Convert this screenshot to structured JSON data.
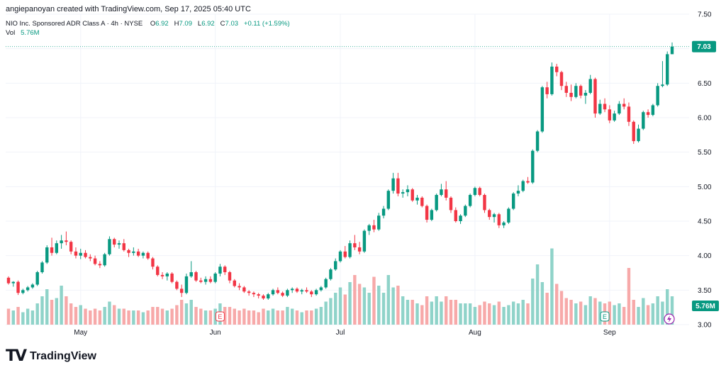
{
  "header": {
    "attribution": "angiepanoyan created with TradingView.com, Sep 17, 2025 05:40 UTC"
  },
  "legend": {
    "symbol": "NIO Inc. Sponsored ADR Class A · 4h · NYSE",
    "open_label": "O",
    "open": "6.92",
    "high_label": "H",
    "high": "7.09",
    "low_label": "L",
    "low": "6.92",
    "close_label": "C",
    "close": "7.03",
    "change": "+0.11 (+1.59%)",
    "vol_label": "Vol",
    "vol_value": "5.76M"
  },
  "brand": {
    "name": "TradingView"
  },
  "colors": {
    "up": "#089981",
    "down": "#f23645",
    "vol_up": "#8fd3c9",
    "vol_down": "#f7a9a9",
    "grid": "#f0f3fa",
    "badge": "#089981"
  },
  "chart_data": {
    "type": "candlestick",
    "title": "NIO Inc. Sponsored ADR Class A · 4h · NYSE",
    "ylim": [
      3.0,
      7.5
    ],
    "y_ticks": [
      "7.50",
      "7.00",
      "6.50",
      "6.00",
      "5.50",
      "5.00",
      "4.50",
      "4.00",
      "3.50",
      "3.00"
    ],
    "x_labels": [
      {
        "label": "May",
        "index": 15
      },
      {
        "label": "Jun",
        "index": 43
      },
      {
        "label": "Jul",
        "index": 69
      },
      {
        "label": "Aug",
        "index": 97
      },
      {
        "label": "Sep",
        "index": 125
      }
    ],
    "last_price": "7.03",
    "last_volume": "5.76M",
    "earnings_markers": [
      {
        "label": "E",
        "index": 44
      },
      {
        "label": "E",
        "index": 124
      }
    ],
    "candles": [
      [
        3.68,
        3.7,
        3.58,
        3.6,
        0.9
      ],
      [
        3.6,
        3.63,
        3.55,
        3.62,
        0.8
      ],
      [
        3.62,
        3.64,
        3.43,
        3.46,
        1.0
      ],
      [
        3.46,
        3.52,
        3.44,
        3.5,
        0.7
      ],
      [
        3.5,
        3.56,
        3.48,
        3.54,
        0.9
      ],
      [
        3.54,
        3.6,
        3.52,
        3.58,
        0.8
      ],
      [
        3.58,
        3.78,
        3.56,
        3.76,
        1.2
      ],
      [
        3.76,
        3.92,
        3.74,
        3.9,
        1.6
      ],
      [
        3.9,
        4.15,
        3.88,
        4.12,
        2.0
      ],
      [
        4.12,
        4.26,
        4.0,
        4.04,
        1.4
      ],
      [
        4.04,
        4.22,
        4.02,
        4.18,
        1.5
      ],
      [
        4.18,
        4.3,
        4.1,
        4.22,
        2.2
      ],
      [
        4.22,
        4.35,
        4.15,
        4.2,
        1.6
      ],
      [
        4.2,
        4.22,
        4.02,
        4.06,
        1.2
      ],
      [
        4.06,
        4.12,
        3.96,
        4.0,
        1.0
      ],
      [
        4.0,
        4.1,
        3.95,
        4.04,
        1.1
      ],
      [
        4.04,
        4.08,
        3.96,
        3.98,
        0.9
      ],
      [
        3.98,
        4.02,
        3.92,
        3.96,
        0.8
      ],
      [
        3.96,
        4.0,
        3.86,
        3.88,
        0.9
      ],
      [
        3.88,
        3.92,
        3.82,
        3.86,
        0.8
      ],
      [
        3.86,
        4.04,
        3.84,
        4.02,
        1.0
      ],
      [
        4.02,
        4.28,
        4.0,
        4.24,
        1.3
      ],
      [
        4.24,
        4.26,
        4.12,
        4.16,
        1.1
      ],
      [
        4.16,
        4.22,
        4.1,
        4.18,
        0.9
      ],
      [
        4.18,
        4.24,
        4.06,
        4.08,
        0.9
      ],
      [
        4.08,
        4.1,
        3.98,
        4.04,
        0.8
      ],
      [
        4.04,
        4.12,
        4.0,
        4.06,
        0.8
      ],
      [
        4.06,
        4.1,
        3.98,
        4.0,
        0.8
      ],
      [
        4.0,
        4.06,
        3.96,
        4.04,
        0.7
      ],
      [
        4.04,
        4.06,
        3.94,
        3.96,
        0.8
      ],
      [
        3.96,
        3.98,
        3.8,
        3.84,
        1.0
      ],
      [
        3.84,
        3.86,
        3.7,
        3.72,
        1.0
      ],
      [
        3.72,
        3.76,
        3.66,
        3.7,
        0.9
      ],
      [
        3.7,
        3.76,
        3.64,
        3.74,
        0.8
      ],
      [
        3.74,
        3.76,
        3.6,
        3.62,
        0.9
      ],
      [
        3.62,
        3.64,
        3.5,
        3.52,
        1.1
      ],
      [
        3.52,
        3.58,
        3.4,
        3.46,
        1.4
      ],
      [
        3.46,
        3.74,
        3.44,
        3.7,
        1.2
      ],
      [
        3.7,
        3.92,
        3.68,
        3.76,
        1.4
      ],
      [
        3.76,
        3.78,
        3.62,
        3.64,
        1.0
      ],
      [
        3.64,
        3.68,
        3.6,
        3.62,
        0.9
      ],
      [
        3.62,
        3.7,
        3.58,
        3.66,
        0.8
      ],
      [
        3.66,
        3.7,
        3.6,
        3.62,
        0.8
      ],
      [
        3.62,
        3.76,
        3.6,
        3.74,
        0.9
      ],
      [
        3.74,
        3.88,
        3.7,
        3.84,
        1.2
      ],
      [
        3.84,
        3.86,
        3.72,
        3.76,
        1.0
      ],
      [
        3.76,
        3.78,
        3.6,
        3.64,
        1.0
      ],
      [
        3.64,
        3.66,
        3.54,
        3.56,
        0.9
      ],
      [
        3.56,
        3.6,
        3.5,
        3.54,
        0.8
      ],
      [
        3.54,
        3.56,
        3.46,
        3.48,
        0.9
      ],
      [
        3.48,
        3.5,
        3.42,
        3.46,
        0.8
      ],
      [
        3.46,
        3.48,
        3.4,
        3.44,
        0.8
      ],
      [
        3.44,
        3.46,
        3.38,
        3.42,
        0.7
      ],
      [
        3.42,
        3.44,
        3.36,
        3.38,
        0.9
      ],
      [
        3.38,
        3.46,
        3.36,
        3.44,
        0.8
      ],
      [
        3.44,
        3.52,
        3.42,
        3.5,
        0.9
      ],
      [
        3.5,
        3.54,
        3.44,
        3.46,
        0.8
      ],
      [
        3.46,
        3.48,
        3.4,
        3.42,
        0.8
      ],
      [
        3.42,
        3.52,
        3.4,
        3.5,
        1.0
      ],
      [
        3.5,
        3.54,
        3.46,
        3.52,
        0.9
      ],
      [
        3.52,
        3.54,
        3.46,
        3.48,
        0.8
      ],
      [
        3.48,
        3.52,
        3.44,
        3.5,
        0.7
      ],
      [
        3.5,
        3.54,
        3.46,
        3.48,
        0.8
      ],
      [
        3.48,
        3.5,
        3.4,
        3.44,
        0.8
      ],
      [
        3.44,
        3.52,
        3.42,
        3.5,
        0.9
      ],
      [
        3.5,
        3.56,
        3.48,
        3.54,
        1.0
      ],
      [
        3.54,
        3.68,
        3.52,
        3.66,
        1.3
      ],
      [
        3.66,
        3.82,
        3.64,
        3.8,
        1.5
      ],
      [
        3.8,
        3.96,
        3.78,
        3.92,
        1.8
      ],
      [
        3.92,
        4.08,
        3.9,
        4.06,
        2.1
      ],
      [
        4.06,
        4.14,
        3.96,
        3.98,
        1.7
      ],
      [
        3.98,
        4.22,
        3.96,
        4.18,
        2.4
      ],
      [
        4.18,
        4.3,
        4.08,
        4.12,
        2.8
      ],
      [
        4.12,
        4.2,
        4.02,
        4.06,
        2.3
      ],
      [
        4.06,
        4.38,
        4.04,
        4.36,
        2.1
      ],
      [
        4.36,
        4.46,
        4.3,
        4.44,
        1.8
      ],
      [
        4.44,
        4.52,
        4.34,
        4.38,
        2.7
      ],
      [
        4.38,
        4.62,
        4.36,
        4.58,
        2.2
      ],
      [
        4.58,
        4.72,
        4.54,
        4.68,
        1.8
      ],
      [
        4.68,
        4.96,
        4.66,
        4.94,
        2.8
      ],
      [
        4.94,
        5.2,
        4.9,
        5.12,
        2.1
      ],
      [
        5.12,
        5.2,
        4.86,
        4.9,
        2.2
      ],
      [
        4.9,
        4.96,
        4.84,
        4.92,
        1.6
      ],
      [
        4.92,
        5.02,
        4.86,
        4.96,
        1.4
      ],
      [
        4.96,
        4.98,
        4.78,
        4.8,
        1.4
      ],
      [
        4.8,
        4.88,
        4.74,
        4.84,
        1.2
      ],
      [
        4.84,
        4.86,
        4.7,
        4.72,
        1.1
      ],
      [
        4.72,
        4.74,
        4.48,
        4.52,
        1.6
      ],
      [
        4.52,
        4.68,
        4.5,
        4.66,
        1.3
      ],
      [
        4.66,
        4.9,
        4.64,
        4.88,
        1.6
      ],
      [
        4.88,
        5.04,
        4.86,
        4.96,
        1.3
      ],
      [
        4.96,
        5.08,
        4.8,
        4.84,
        1.6
      ],
      [
        4.84,
        4.86,
        4.62,
        4.66,
        1.4
      ],
      [
        4.66,
        4.7,
        4.48,
        4.5,
        1.4
      ],
      [
        4.5,
        4.6,
        4.46,
        4.58,
        1.2
      ],
      [
        4.58,
        4.74,
        4.56,
        4.72,
        1.2
      ],
      [
        4.72,
        4.9,
        4.7,
        4.88,
        1.2
      ],
      [
        4.88,
        5.0,
        4.86,
        4.98,
        1.0
      ],
      [
        4.98,
        5.0,
        4.86,
        4.88,
        1.1
      ],
      [
        4.88,
        4.9,
        4.62,
        4.66,
        1.3
      ],
      [
        4.66,
        4.68,
        4.52,
        4.56,
        1.2
      ],
      [
        4.56,
        4.62,
        4.48,
        4.6,
        1.1
      ],
      [
        4.6,
        4.62,
        4.4,
        4.44,
        1.3
      ],
      [
        4.44,
        4.5,
        4.4,
        4.48,
        1.0
      ],
      [
        4.48,
        4.7,
        4.46,
        4.68,
        1.1
      ],
      [
        4.68,
        4.92,
        4.66,
        4.9,
        1.3
      ],
      [
        4.9,
        5.02,
        4.86,
        4.94,
        1.2
      ],
      [
        4.94,
        5.1,
        4.92,
        5.08,
        1.4
      ],
      [
        5.08,
        5.14,
        5.04,
        5.06,
        1.2
      ],
      [
        5.06,
        5.54,
        5.04,
        5.52,
        2.6
      ],
      [
        5.52,
        5.82,
        5.5,
        5.8,
        3.4
      ],
      [
        5.8,
        6.46,
        5.78,
        6.44,
        2.4
      ],
      [
        6.44,
        6.52,
        6.28,
        6.34,
        1.8
      ],
      [
        6.34,
        6.8,
        6.32,
        6.74,
        4.3
      ],
      [
        6.74,
        6.78,
        6.6,
        6.66,
        2.3
      ],
      [
        6.66,
        6.68,
        6.4,
        6.46,
        1.9
      ],
      [
        6.46,
        6.52,
        6.3,
        6.36,
        1.5
      ],
      [
        6.36,
        6.48,
        6.24,
        6.3,
        1.4
      ],
      [
        6.3,
        6.5,
        6.28,
        6.46,
        1.2
      ],
      [
        6.46,
        6.48,
        6.28,
        6.32,
        1.3
      ],
      [
        6.32,
        6.4,
        6.2,
        6.36,
        1.1
      ],
      [
        6.36,
        6.62,
        6.34,
        6.56,
        1.6
      ],
      [
        6.56,
        6.58,
        6.0,
        6.06,
        1.5
      ],
      [
        6.06,
        6.26,
        6.04,
        6.2,
        1.3
      ],
      [
        6.2,
        6.28,
        6.08,
        6.12,
        1.2
      ],
      [
        6.12,
        6.18,
        5.92,
        5.96,
        1.3
      ],
      [
        5.96,
        6.1,
        5.94,
        6.06,
        1.1
      ],
      [
        6.06,
        6.24,
        6.04,
        6.2,
        1.2
      ],
      [
        6.2,
        6.28,
        6.12,
        6.16,
        1.0
      ],
      [
        6.16,
        6.22,
        5.88,
        5.94,
        3.2
      ],
      [
        5.94,
        5.96,
        5.62,
        5.66,
        1.4
      ],
      [
        5.66,
        5.9,
        5.64,
        5.84,
        1.0
      ],
      [
        5.84,
        6.1,
        5.82,
        6.08,
        1.5
      ],
      [
        6.08,
        6.12,
        6.0,
        6.04,
        1.1
      ],
      [
        6.04,
        6.2,
        6.02,
        6.18,
        1.2
      ],
      [
        6.18,
        6.5,
        6.16,
        6.46,
        1.6
      ],
      [
        6.46,
        6.82,
        6.44,
        6.48,
        1.3
      ],
      [
        6.48,
        6.96,
        6.46,
        6.92,
        2.0
      ],
      [
        6.92,
        7.09,
        6.92,
        7.03,
        1.6
      ]
    ]
  }
}
